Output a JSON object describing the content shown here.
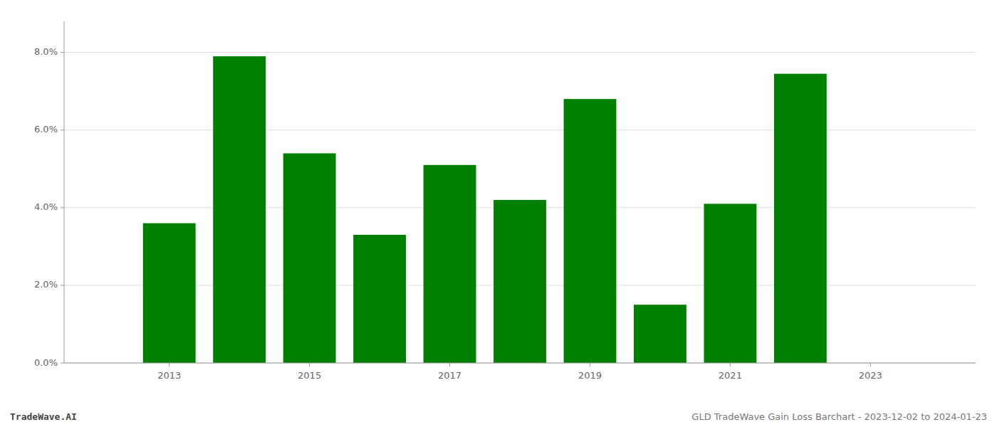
{
  "chart_data": {
    "type": "bar",
    "x": [
      2013,
      2014,
      2015,
      2016,
      2017,
      2018,
      2019,
      2020,
      2021,
      2022
    ],
    "values": [
      0.036,
      0.079,
      0.054,
      0.033,
      0.051,
      0.042,
      0.068,
      0.015,
      0.041,
      0.0745
    ],
    "color": "#008000",
    "xlim": [
      2011.5,
      2024.5
    ],
    "xticks": [
      2013,
      2015,
      2017,
      2019,
      2021,
      2023
    ],
    "ylim": [
      0,
      0.088
    ],
    "yticks": [
      {
        "value": 0.0,
        "label": "0.0%"
      },
      {
        "value": 0.02,
        "label": "2.0%"
      },
      {
        "value": 0.04,
        "label": "4.0%"
      },
      {
        "value": 0.06,
        "label": "6.0%"
      },
      {
        "value": 0.08,
        "label": "8.0%"
      }
    ],
    "grid": true,
    "annotations": [
      "TradeWave.AI",
      "GLD TradeWave Gain Loss Barchart - 2023-12-02 to 2024-01-23"
    ]
  }
}
